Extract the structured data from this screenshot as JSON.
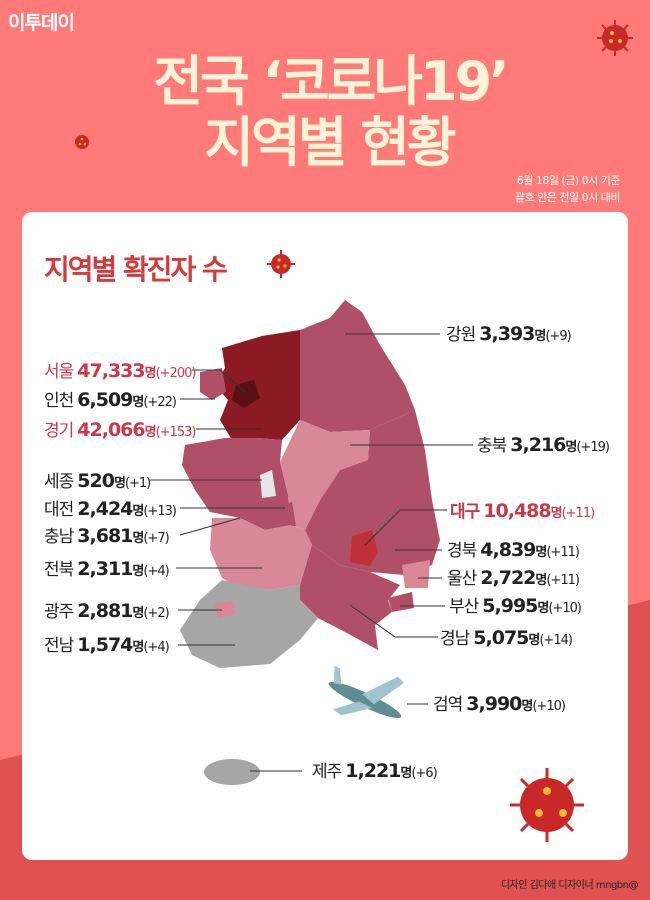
{
  "brand": "이투데이",
  "title_line1": "전국 ‘코로나19’",
  "title_line2": "지역별 현황",
  "note_line1": "6월 18일 (금) 0시 기준",
  "note_line2": "괄호 안은 전일 0시 대비",
  "card_title": "지역별 확진자 수",
  "unit": "명",
  "regions": [
    {
      "name": "서울",
      "count": "47,333",
      "change": "(+200)",
      "highlight": true
    },
    {
      "name": "인천",
      "count": "6,509",
      "change": "(+22)",
      "highlight": false
    },
    {
      "name": "경기",
      "count": "42,066",
      "change": "(+153)",
      "highlight": true
    },
    {
      "name": "세종",
      "count": "520",
      "change": "(+1)",
      "highlight": false
    },
    {
      "name": "대전",
      "count": "2,424",
      "change": "(+13)",
      "highlight": false
    },
    {
      "name": "충남",
      "count": "3,681",
      "change": "(+7)",
      "highlight": false
    },
    {
      "name": "전북",
      "count": "2,311",
      "change": "(+4)",
      "highlight": false
    },
    {
      "name": "광주",
      "count": "2,881",
      "change": "(+2)",
      "highlight": false
    },
    {
      "name": "전남",
      "count": "1,574",
      "change": "(+4)",
      "highlight": false
    },
    {
      "name": "강원",
      "count": "3,393",
      "change": "(+9)",
      "highlight": false
    },
    {
      "name": "충북",
      "count": "3,216",
      "change": "(+19)",
      "highlight": false
    },
    {
      "name": "대구",
      "count": "10,488",
      "change": "(+11)",
      "highlight": true
    },
    {
      "name": "경북",
      "count": "4,839",
      "change": "(+11)",
      "highlight": false
    },
    {
      "name": "울산",
      "count": "2,722",
      "change": "(+11)",
      "highlight": false
    },
    {
      "name": "부산",
      "count": "5,995",
      "change": "(+10)",
      "highlight": false
    },
    {
      "name": "경남",
      "count": "5,075",
      "change": "(+14)",
      "highlight": false
    },
    {
      "name": "검역",
      "count": "3,990",
      "change": "(+10)",
      "highlight": false
    },
    {
      "name": "제주",
      "count": "1,221",
      "change": "(+6)",
      "highlight": false
    }
  ],
  "credit": "디자인 김다애 디자이너 mngbn@",
  "colors": {
    "background": "#ff7a78",
    "background_lower": "#e05252",
    "title": "#fff3d6",
    "accent": "#d73a3a",
    "capital": "#8b1a24",
    "seoul": "#5a0f14",
    "high": "#b05068",
    "mid": "#d98898",
    "low": "#a6a6a6",
    "daegu": "#c0303a"
  }
}
